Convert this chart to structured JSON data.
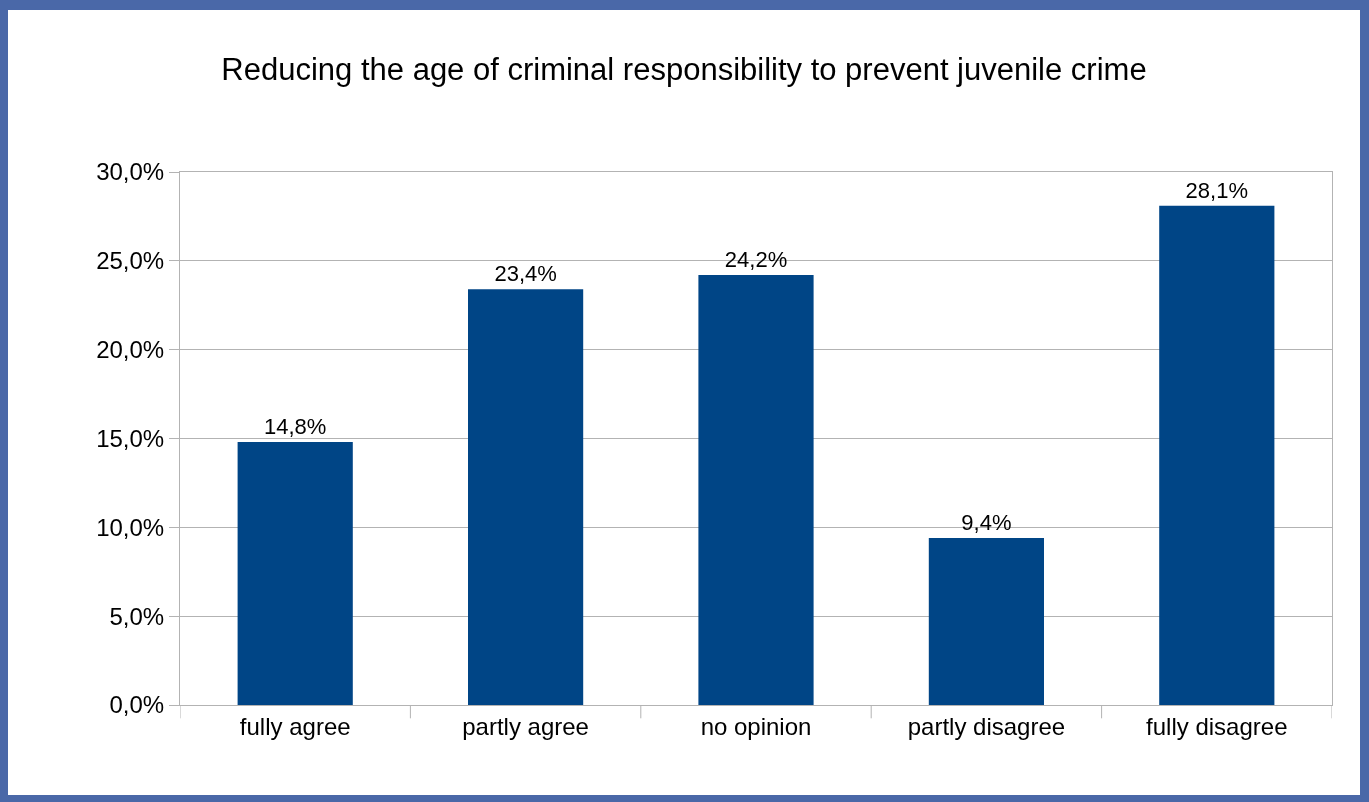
{
  "chart_data": {
    "type": "bar",
    "title": "Reducing the age of criminal responsibility to prevent juvenile crime",
    "categories": [
      "fully agree",
      "partly agree",
      "no opinion",
      "partly disagree",
      "fully disagree"
    ],
    "values": [
      14.8,
      23.4,
      24.2,
      9.4,
      28.1
    ],
    "value_labels": [
      "14,8%",
      "23,4%",
      "24,2%",
      "9,4%",
      "28,1%"
    ],
    "color": "#004586",
    "ylim": [
      0,
      30
    ],
    "yticks": [
      {
        "value": 0,
        "label": "0,0%"
      },
      {
        "value": 5,
        "label": "5,0%"
      },
      {
        "value": 10,
        "label": "10,0%"
      },
      {
        "value": 15,
        "label": "15,0%"
      },
      {
        "value": 20,
        "label": "20,0%"
      },
      {
        "value": 25,
        "label": "25,0%"
      },
      {
        "value": 30,
        "label": "30,0%"
      }
    ],
    "grid": "y"
  }
}
